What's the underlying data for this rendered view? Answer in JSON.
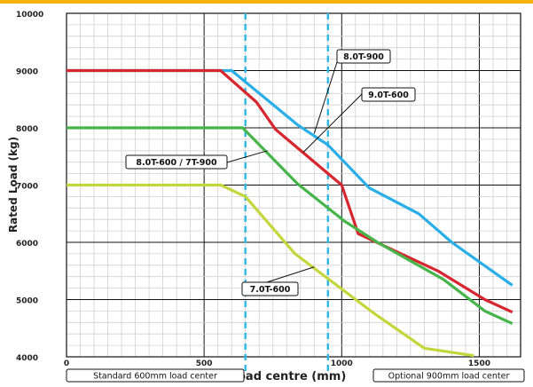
{
  "colors": {
    "top_strip": "#f6b10f",
    "minor_grid": "#d0d0d0",
    "major_grid": "#111111",
    "ref_line": "#2fb8e6",
    "callout_stroke": "#111111",
    "callout_fill": "#ffffff"
  },
  "chart_data": {
    "type": "line",
    "title": "",
    "xlabel": "Load centre (mm)",
    "ylabel": "Rated Load (kg)",
    "xlim": [
      0,
      1650
    ],
    "ylim": [
      4000,
      10000
    ],
    "x_ticks": [
      0,
      500,
      1000,
      1500
    ],
    "x_tick_labels": [
      "0",
      "500",
      "1000",
      "1500"
    ],
    "y_ticks": [
      4000,
      5000,
      6000,
      7000,
      8000,
      9000,
      10000
    ],
    "y_tick_labels": [
      "4000",
      "5000",
      "6000",
      "7000",
      "8000",
      "9000",
      "10000"
    ],
    "grid": true,
    "series": [
      {
        "name": "8.0T-900",
        "color": "#29aee8",
        "points": [
          [
            0,
            9000
          ],
          [
            600,
            9000
          ],
          [
            840,
            8050
          ],
          [
            950,
            7700
          ],
          [
            1100,
            6950
          ],
          [
            1280,
            6500
          ],
          [
            1400,
            6000
          ],
          [
            1620,
            5250
          ]
        ]
      },
      {
        "name": "9.0T-600",
        "color": "#d8262f",
        "points": [
          [
            0,
            9000
          ],
          [
            560,
            9000
          ],
          [
            690,
            8450
          ],
          [
            760,
            7970
          ],
          [
            1000,
            7000
          ],
          [
            1060,
            6150
          ],
          [
            1350,
            5500
          ],
          [
            1520,
            5000
          ],
          [
            1620,
            4780
          ]
        ]
      },
      {
        "name": "8.0T-600 / 7T-900",
        "color": "#45b549",
        "points": [
          [
            0,
            8000
          ],
          [
            640,
            8000
          ],
          [
            840,
            7020
          ],
          [
            1010,
            6370
          ],
          [
            1130,
            6000
          ],
          [
            1370,
            5350
          ],
          [
            1520,
            4800
          ],
          [
            1620,
            4580
          ]
        ]
      },
      {
        "name": "7.0T-600",
        "color": "#c2d73b",
        "points": [
          [
            0,
            7000
          ],
          [
            560,
            7000
          ],
          [
            650,
            6800
          ],
          [
            830,
            5800
          ],
          [
            1120,
            4750
          ],
          [
            1300,
            4150
          ],
          [
            1480,
            4020
          ]
        ]
      }
    ],
    "reference_lines": [
      {
        "name": "Standard 600mm load center",
        "x": 650
      },
      {
        "name": "Optional 900mm load center",
        "x": 950
      }
    ],
    "annotations": [
      {
        "text": "8.0T-900",
        "series": "8.0T-900",
        "target": [
          900,
          7900
        ]
      },
      {
        "text": "9.0T-600",
        "series": "9.0T-600",
        "target": [
          860,
          7570
        ]
      },
      {
        "text": "8.0T-600 / 7T-900",
        "series": "8.0T-600 / 7T-900",
        "target": [
          730,
          7600
        ]
      },
      {
        "text": "7.0T-600",
        "series": "7.0T-600",
        "target": [
          900,
          5570
        ]
      }
    ],
    "bottom_labels": [
      {
        "text": "Standard 600mm load center"
      },
      {
        "text": "Optional 900mm load center"
      }
    ]
  }
}
